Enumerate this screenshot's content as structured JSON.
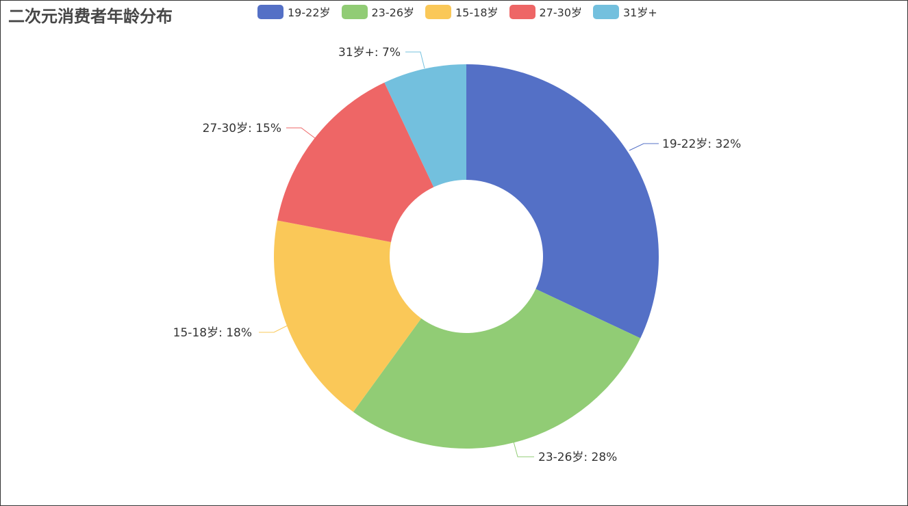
{
  "chart_data": {
    "type": "pie",
    "donut": true,
    "title": "二次元消费者年龄分布",
    "legend_position": "top",
    "categories": [
      "19-22岁",
      "23-26岁",
      "15-18岁",
      "27-30岁",
      "31岁+"
    ],
    "values": [
      32,
      28,
      18,
      15,
      7
    ],
    "unit": "%",
    "colors": [
      "#5470c6",
      "#91cc75",
      "#fac858",
      "#ee6666",
      "#73c0de"
    ],
    "labels": [
      "19-22岁: 32%",
      "23-26岁: 28%",
      "15-18岁: 18%",
      "27-30岁: 15%",
      "31岁+: 7%"
    ]
  }
}
